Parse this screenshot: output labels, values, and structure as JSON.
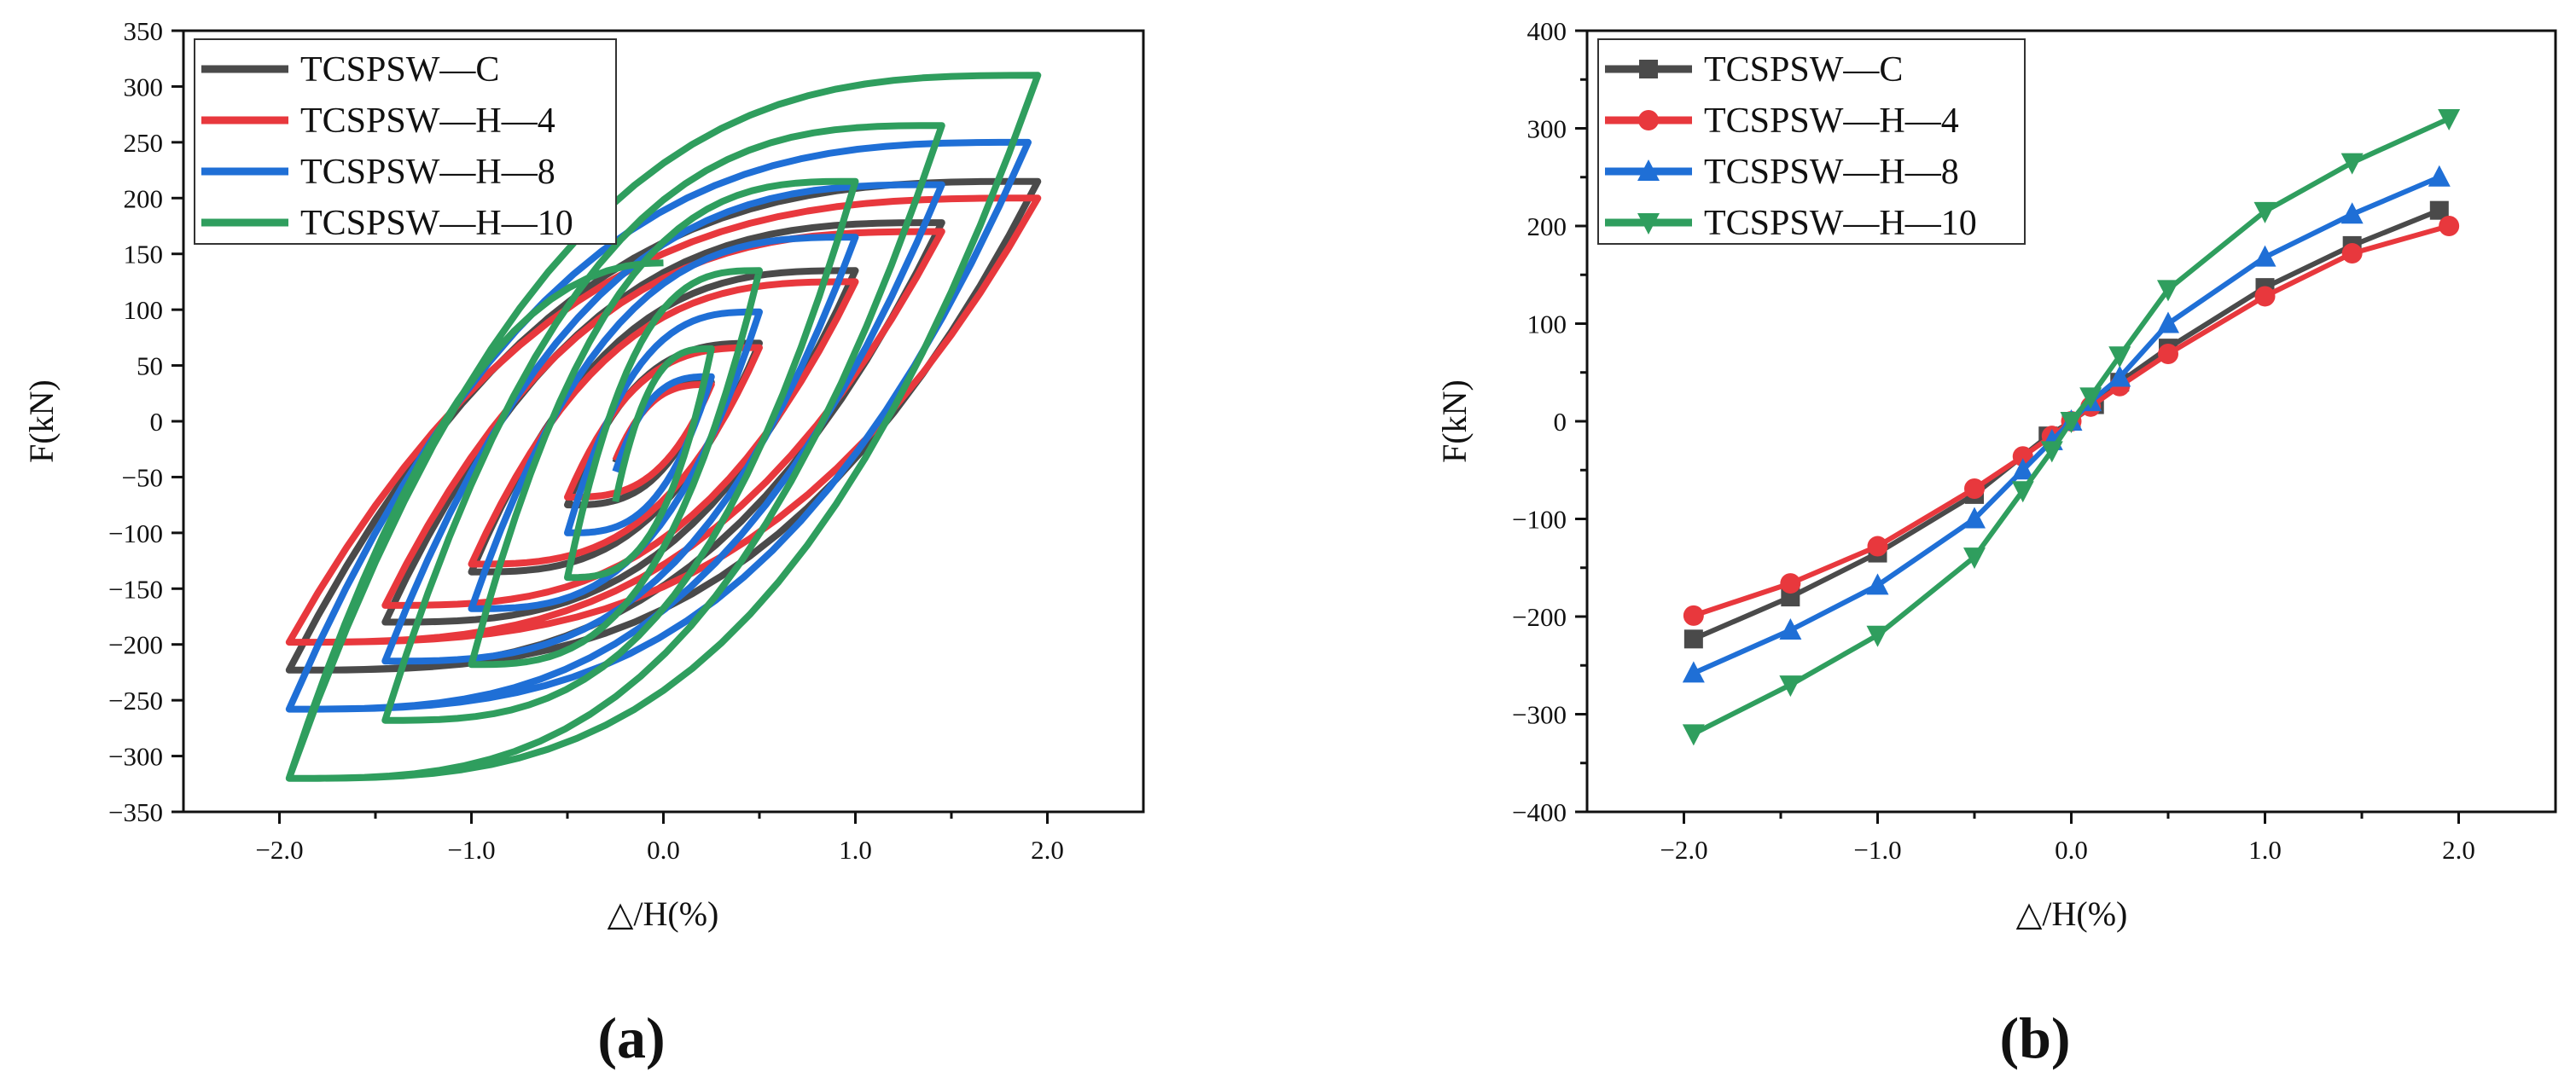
{
  "figure": {
    "panel_a_label": "(a)",
    "panel_b_label": "(b)"
  },
  "chart_data": [
    {
      "id": "a",
      "type": "line",
      "subtype": "hysteresis loops",
      "title": "",
      "xlabel": "△/H(%)",
      "ylabel": "F(kN)",
      "xlim": [
        -2.5,
        2.5
      ],
      "ylim": [
        -350,
        350
      ],
      "xticks": [
        -2.0,
        -1.0,
        0.0,
        1.0,
        2.0
      ],
      "xtick_labels": [
        "−2.0",
        "−1.0",
        "0.0",
        "1.0",
        "2.0"
      ],
      "xminor_step": 0.5,
      "yticks": [
        -350,
        -300,
        -250,
        -200,
        -150,
        -100,
        -50,
        0,
        50,
        100,
        150,
        200,
        250,
        300,
        350
      ],
      "ytick_labels": [
        "−350",
        "−300",
        "−250",
        "−200",
        "−150",
        "−100",
        "−50",
        "0",
        "50",
        "100",
        "150",
        "200",
        "250",
        "300",
        "350"
      ],
      "legend_position": "top-left",
      "series": [
        {
          "name": "TCSPSW—C",
          "color": "#4a4a4a",
          "peaks_pos": [
            [
              0.25,
              35
            ],
            [
              0.5,
              70
            ],
            [
              1.0,
              135
            ],
            [
              1.45,
              178
            ],
            [
              1.95,
              215
            ]
          ],
          "peaks_neg": [
            [
              -0.25,
              -37
            ],
            [
              -0.5,
              -75
            ],
            [
              -1.0,
              -135
            ],
            [
              -1.45,
              -180
            ],
            [
              -1.95,
              -223
            ]
          ]
        },
        {
          "name": "TCSPSW—H—4",
          "color": "#e8383d",
          "peaks_pos": [
            [
              0.25,
              33
            ],
            [
              0.5,
              66
            ],
            [
              1.0,
              125
            ],
            [
              1.45,
              170
            ],
            [
              1.95,
              200
            ]
          ],
          "peaks_neg": [
            [
              -0.25,
              -35
            ],
            [
              -0.5,
              -68
            ],
            [
              -1.0,
              -128
            ],
            [
              -1.45,
              -165
            ],
            [
              -1.95,
              -198
            ]
          ]
        },
        {
          "name": "TCSPSW—H—8",
          "color": "#1f6fd6",
          "peaks_pos": [
            [
              0.25,
              40
            ],
            [
              0.5,
              98
            ],
            [
              1.0,
              165
            ],
            [
              1.45,
              212
            ],
            [
              1.9,
              250
            ]
          ],
          "peaks_neg": [
            [
              -0.25,
              -45
            ],
            [
              -0.5,
              -100
            ],
            [
              -1.0,
              -168
            ],
            [
              -1.45,
              -215
            ],
            [
              -1.95,
              -258
            ]
          ]
        },
        {
          "name": "TCSPSW—H—10",
          "color": "#2f9e5e",
          "peaks_pos": [
            [
              0.25,
              65
            ],
            [
              0.5,
              135
            ],
            [
              1.0,
              215
            ],
            [
              1.45,
              265
            ],
            [
              1.95,
              310
            ]
          ],
          "peaks_neg": [
            [
              -0.25,
              -72
            ],
            [
              -0.5,
              -140
            ],
            [
              -1.0,
              -218
            ],
            [
              -1.45,
              -268
            ],
            [
              -1.95,
              -320
            ]
          ],
          "end_point": [
            0.0,
            142
          ]
        }
      ]
    },
    {
      "id": "b",
      "type": "line",
      "subtype": "skeleton curves",
      "title": "",
      "xlabel": "△/H(%)",
      "ylabel": "F(kN)",
      "xlim": [
        -2.5,
        2.5
      ],
      "ylim": [
        -400,
        400
      ],
      "xticks": [
        -2.0,
        -1.0,
        0.0,
        1.0,
        2.0
      ],
      "xtick_labels": [
        "−2.0",
        "−1.0",
        "0.0",
        "1.0",
        "2.0"
      ],
      "xminor_step": 0.5,
      "yticks": [
        -400,
        -300,
        -200,
        -100,
        0,
        100,
        200,
        300,
        400
      ],
      "ytick_labels": [
        "−400",
        "−300",
        "−200",
        "−100",
        "0",
        "100",
        "200",
        "300",
        "400"
      ],
      "yminor_step": 50,
      "legend_position": "top-left",
      "series": [
        {
          "name": "TCSPSW—C",
          "color": "#4a4a4a",
          "marker": "square",
          "x": [
            -1.95,
            -1.45,
            -1.0,
            -0.5,
            -0.12,
            0.0,
            0.12,
            0.25,
            0.5,
            1.0,
            1.45,
            1.9
          ],
          "y": [
            -223,
            -180,
            -135,
            -75,
            -15,
            0,
            17,
            40,
            75,
            137,
            180,
            216
          ]
        },
        {
          "name": "TCSPSW—H—4",
          "color": "#e8383d",
          "marker": "circle",
          "x": [
            -1.95,
            -1.45,
            -1.0,
            -0.5,
            -0.25,
            -0.1,
            0.0,
            0.1,
            0.25,
            0.5,
            1.0,
            1.45,
            1.95
          ],
          "y": [
            -199,
            -166,
            -128,
            -69,
            -36,
            -15,
            0,
            15,
            36,
            69,
            128,
            172,
            200
          ]
        },
        {
          "name": "TCSPSW—H—8",
          "color": "#1f6fd6",
          "marker": "triangle-up",
          "x": [
            -1.95,
            -1.45,
            -1.0,
            -0.5,
            -0.25,
            -0.1,
            0.0,
            0.1,
            0.25,
            0.5,
            1.0,
            1.45,
            1.9
          ],
          "y": [
            -258,
            -214,
            -168,
            -100,
            -50,
            -20,
            0,
            20,
            45,
            100,
            168,
            212,
            250
          ]
        },
        {
          "name": "TCSPSW—H—10",
          "color": "#2f9e5e",
          "marker": "triangle-down",
          "x": [
            -1.95,
            -1.45,
            -1.0,
            -0.5,
            -0.25,
            -0.1,
            0.0,
            0.1,
            0.25,
            0.5,
            1.0,
            1.45,
            1.95
          ],
          "y": [
            -320,
            -270,
            -219,
            -139,
            -71,
            -30,
            0,
            25,
            67,
            135,
            215,
            265,
            310
          ]
        }
      ]
    }
  ]
}
